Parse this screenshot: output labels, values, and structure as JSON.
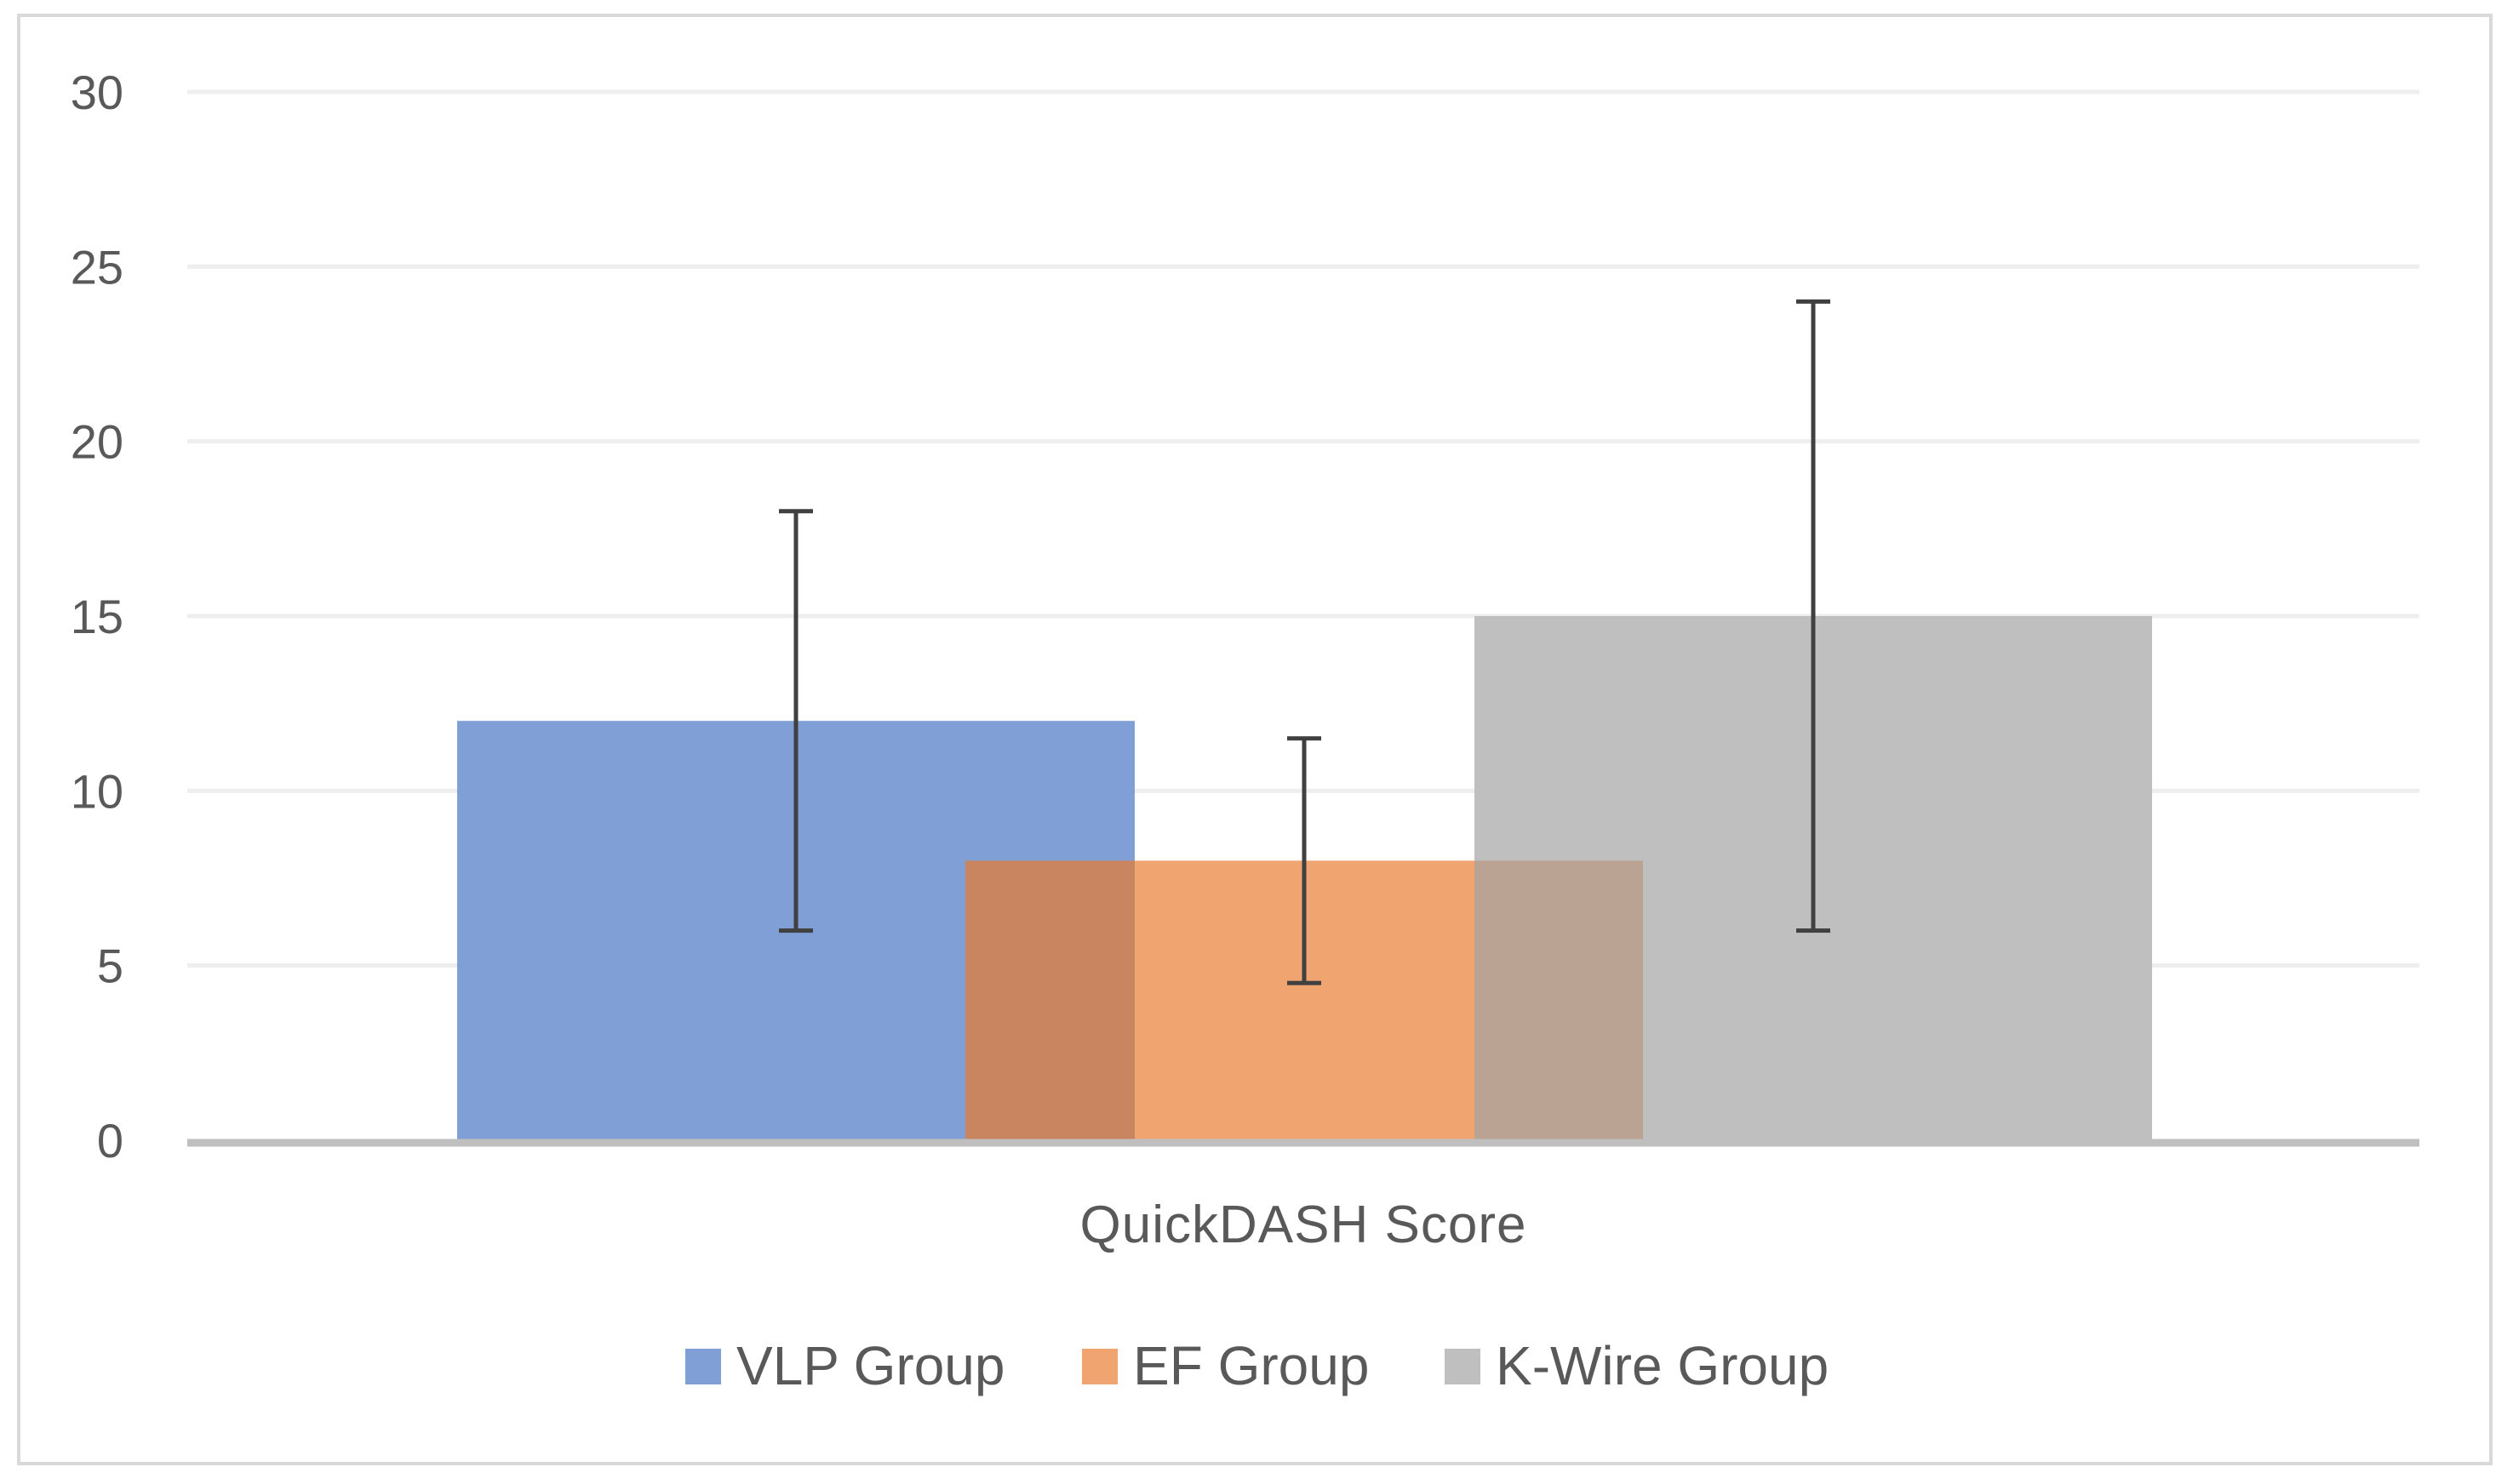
{
  "chart_data": {
    "type": "bar",
    "title": "",
    "xlabel": "",
    "ylabel": "",
    "categories": [
      "QuickDASH Score"
    ],
    "ylim": [
      0,
      30
    ],
    "yticks": [
      0,
      5,
      10,
      15,
      20,
      25,
      30
    ],
    "grid": true,
    "legend_position": "bottom",
    "overlap": true,
    "series": [
      {
        "name": "VLP Group",
        "values": [
          12
        ],
        "error_low": [
          6
        ],
        "error_high": [
          18
        ],
        "color": "#7f9fd6"
      },
      {
        "name": "EF Group",
        "values": [
          8
        ],
        "error_low": [
          4.5
        ],
        "error_high": [
          11.5
        ],
        "color": "#f0a571"
      },
      {
        "name": "K-Wire Group",
        "values": [
          15
        ],
        "error_low": [
          6
        ],
        "error_high": [
          24
        ],
        "color": "#bfbfbf"
      }
    ]
  }
}
